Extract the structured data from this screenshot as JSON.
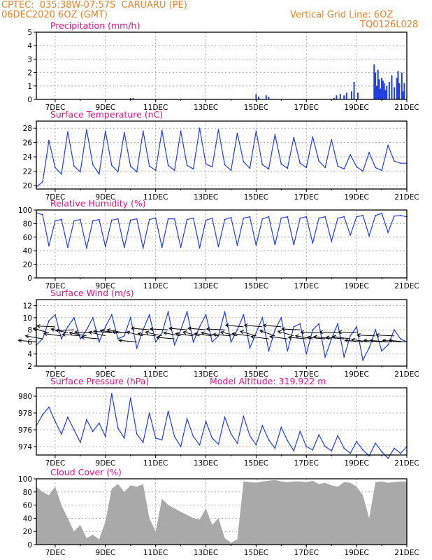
{
  "header": {
    "station": "CPTEC:  035:38W-07:57S  CARUARU (PE)",
    "run": "06DEC2020 6OZ (GMT)",
    "grid_note": "Vertical Grid Line: 6OZ",
    "code": "TQ0126L028"
  },
  "colors": {
    "header": "#e8842a",
    "title": "#e0158a",
    "line": "#1f3fe0",
    "bar": "#1f3fe0",
    "cloud": "#a9a9a9",
    "arrow": "#000000",
    "grid": "#9a9a9a"
  },
  "chart_data": [
    {
      "type": "bar",
      "title": "Precipitation (mm/h)",
      "x_tick_labels": [
        "7DEC",
        "9DEC",
        "11DEC",
        "13DEC",
        "15DEC",
        "17DEC",
        "19DEC",
        "21DEC"
      ],
      "ylim": [
        0,
        5
      ],
      "y_ticks": [
        0,
        1,
        2,
        3,
        4,
        5
      ],
      "grid": true,
      "x_start_day": 6.25,
      "x_end_day": 21,
      "series": [
        {
          "x": [
            10.0,
            10.1,
            15.0,
            15.1,
            15.4,
            15.5,
            18.1,
            18.2,
            18.35,
            18.5,
            18.6,
            18.8,
            18.9,
            19.05,
            19.7,
            19.75,
            19.8,
            19.85,
            19.9,
            19.95,
            20.0,
            20.05,
            20.1,
            20.15,
            20.2,
            20.3,
            20.4,
            20.5,
            20.6,
            20.65,
            20.7,
            20.8,
            20.85,
            20.9
          ],
          "values": [
            0.1,
            0.1,
            0.4,
            0.2,
            0.3,
            0.2,
            0.1,
            0.3,
            0.4,
            0.3,
            0.5,
            0.6,
            1.3,
            0.5,
            2.6,
            2.0,
            1.0,
            2.2,
            1.5,
            0.8,
            1.6,
            1.4,
            1.2,
            0.7,
            1.0,
            1.3,
            1.8,
            0.9,
            1.6,
            2.1,
            1.2,
            2.0,
            0.6,
            1.2
          ]
        }
      ]
    },
    {
      "type": "line",
      "title": "Surface Temperature (nC)",
      "x_tick_labels": [
        "7DEC",
        "9DEC",
        "11DEC",
        "13DEC",
        "15DEC",
        "17DEC",
        "19DEC",
        "21DEC"
      ],
      "ylim": [
        19.5,
        29
      ],
      "y_ticks": [
        20,
        22,
        24,
        26,
        28
      ],
      "grid": true,
      "x_start_day": 6.25,
      "x_end_day": 21,
      "series": [
        {
          "x": [
            6.25,
            6.5,
            6.75,
            7.0,
            7.25,
            7.5,
            7.75,
            8.0,
            8.25,
            8.5,
            8.75,
            9.0,
            9.25,
            9.5,
            9.75,
            10.0,
            10.25,
            10.5,
            10.75,
            11.0,
            11.25,
            11.5,
            11.75,
            12.0,
            12.25,
            12.5,
            12.75,
            13.0,
            13.25,
            13.5,
            13.75,
            14.0,
            14.25,
            14.5,
            14.75,
            15.0,
            15.25,
            15.5,
            15.75,
            16.0,
            16.25,
            16.5,
            16.75,
            17.0,
            17.25,
            17.5,
            17.75,
            18.0,
            18.25,
            18.5,
            18.75,
            19.0,
            19.25,
            19.5,
            19.75,
            20.0,
            20.25,
            20.5,
            20.75,
            21.0
          ],
          "values": [
            19.8,
            20.5,
            26.3,
            22.5,
            21.6,
            27.5,
            22.7,
            21.9,
            27.8,
            22.9,
            21.6,
            27.6,
            22.8,
            21.9,
            27.4,
            22.7,
            21.9,
            27.6,
            22.7,
            22.1,
            27.7,
            22.8,
            22.1,
            27.6,
            22.8,
            22.3,
            28.0,
            23.0,
            22.6,
            27.8,
            22.9,
            22.1,
            27.3,
            23.3,
            22.4,
            27.6,
            22.9,
            22.3,
            27.1,
            23.0,
            22.4,
            26.7,
            23.1,
            22.5,
            26.8,
            23.4,
            22.5,
            26.4,
            22.7,
            22.3,
            24.3,
            22.6,
            22.0,
            24.6,
            22.5,
            22.1,
            25.6,
            23.4,
            23.1,
            23.1
          ]
        }
      ]
    },
    {
      "type": "line",
      "title": "Relative Humidity (%)",
      "x_tick_labels": [
        "7DEC",
        "9DEC",
        "11DEC",
        "13DEC",
        "15DEC",
        "17DEC",
        "19DEC",
        "21DEC"
      ],
      "ylim": [
        0,
        100
      ],
      "y_ticks": [
        0,
        20,
        40,
        60,
        80,
        100
      ],
      "grid": true,
      "x_start_day": 6.25,
      "x_end_day": 21,
      "series": [
        {
          "x": [
            6.25,
            6.5,
            6.75,
            7.0,
            7.25,
            7.5,
            7.75,
            8.0,
            8.25,
            8.5,
            8.75,
            9.0,
            9.25,
            9.5,
            9.75,
            10.0,
            10.25,
            10.5,
            10.75,
            11.0,
            11.25,
            11.5,
            11.75,
            12.0,
            12.25,
            12.5,
            12.75,
            13.0,
            13.25,
            13.5,
            13.75,
            14.0,
            14.25,
            14.5,
            14.75,
            15.0,
            15.25,
            15.5,
            15.75,
            16.0,
            16.25,
            16.5,
            16.75,
            17.0,
            17.25,
            17.5,
            17.75,
            18.0,
            18.25,
            18.5,
            18.75,
            19.0,
            19.25,
            19.5,
            19.75,
            20.0,
            20.25,
            20.5,
            20.75,
            21.0
          ],
          "values": [
            96,
            93,
            47,
            84,
            86,
            45,
            84,
            86,
            44,
            84,
            86,
            46,
            85,
            87,
            45,
            85,
            87,
            44,
            86,
            88,
            45,
            87,
            87,
            45,
            86,
            88,
            44,
            85,
            88,
            46,
            86,
            89,
            48,
            88,
            90,
            48,
            87,
            90,
            49,
            88,
            90,
            49,
            88,
            90,
            51,
            88,
            90,
            54,
            88,
            90,
            63,
            90,
            92,
            62,
            92,
            95,
            67,
            91,
            92,
            90
          ]
        }
      ]
    },
    {
      "type": "line",
      "title": "Surface Wind (m/s)",
      "x_tick_labels": [
        "7DEC",
        "9DEC",
        "11DEC",
        "13DEC",
        "15DEC",
        "17DEC",
        "19DEC",
        "21DEC"
      ],
      "ylim": [
        2,
        13
      ],
      "y_ticks": [
        2,
        4,
        6,
        8,
        10,
        12
      ],
      "grid": true,
      "x_start_day": 6.25,
      "x_end_day": 21,
      "series": [
        {
          "x": [
            6.25,
            6.5,
            6.75,
            7.0,
            7.25,
            7.5,
            7.75,
            8.0,
            8.25,
            8.5,
            8.75,
            9.0,
            9.25,
            9.5,
            9.75,
            10.0,
            10.25,
            10.5,
            10.75,
            11.0,
            11.25,
            11.5,
            11.75,
            12.0,
            12.25,
            12.5,
            12.75,
            13.0,
            13.25,
            13.5,
            13.75,
            14.0,
            14.25,
            14.5,
            14.75,
            15.0,
            15.25,
            15.5,
            15.75,
            16.0,
            16.25,
            16.5,
            16.75,
            17.0,
            17.25,
            17.5,
            17.75,
            18.0,
            18.25,
            18.5,
            18.75,
            19.0,
            19.25,
            19.5,
            19.75,
            20.0,
            20.25,
            20.5,
            20.75,
            21.0
          ],
          "values": [
            5.5,
            6.5,
            9.5,
            10.5,
            6.5,
            8.5,
            10.0,
            6.5,
            8.0,
            10.0,
            6.0,
            8.5,
            10.5,
            6.5,
            7.0,
            10.0,
            5.0,
            8.0,
            10.5,
            6.0,
            7.5,
            11.0,
            5.5,
            8.0,
            11.0,
            6.0,
            8.5,
            10.5,
            6.0,
            7.0,
            11.0,
            6.0,
            8.0,
            10.5,
            5.0,
            7.5,
            10.0,
            4.5,
            8.0,
            10.0,
            4.5,
            8.5,
            9.0,
            4.0,
            8.0,
            9.0,
            3.5,
            6.5,
            9.0,
            3.5,
            7.0,
            8.5,
            3.0,
            5.0,
            8.0,
            4.5,
            5.5,
            8.0,
            6.5,
            6.0
          ]
        }
      ],
      "wind_vectors": {
        "x": [
          6.25,
          6.5,
          6.75,
          7.0,
          7.25,
          7.5,
          7.75,
          8.0,
          8.25,
          8.5,
          8.75,
          9.0,
          9.25,
          9.5,
          9.75,
          10.0,
          10.25,
          10.5,
          10.75,
          11.0,
          11.25,
          11.5,
          11.75,
          12.0,
          12.25,
          12.5,
          12.75,
          13.0,
          13.25,
          13.5,
          13.75,
          14.0,
          14.25,
          14.5,
          14.75,
          15.0,
          15.25,
          15.5,
          15.75,
          16.0,
          16.25,
          16.5,
          16.75,
          17.0,
          17.25,
          17.5,
          17.75,
          18.0,
          18.25,
          18.5,
          18.75,
          19.0,
          19.25,
          19.5,
          19.75,
          20.0,
          20.25,
          20.5,
          20.75,
          21.0
        ],
        "speed": [
          6.0,
          6.5,
          7.5,
          8.5,
          7.0,
          7.5,
          8.0,
          7.0,
          7.0,
          7.5,
          6.5,
          7.0,
          7.5,
          7.5,
          7.5,
          7.5,
          6.0,
          7.0,
          8.0,
          7.0,
          7.0,
          8.0,
          6.5,
          7.0,
          8.0,
          7.0,
          7.0,
          8.0,
          7.0,
          7.0,
          8.0,
          7.0,
          7.0,
          8.5,
          7.0,
          7.0,
          8.5,
          6.5,
          7.0,
          8.5,
          6.5,
          7.0,
          8.0,
          6.5,
          6.5,
          7.5,
          6.5,
          6.5,
          7.5,
          6.5,
          6.5,
          7.5,
          6.0,
          6.0,
          7.0,
          6.0,
          6.0,
          7.0,
          6.0,
          6.0
        ],
        "direction_deg": [
          100,
          110,
          120,
          95,
          105,
          115,
          85,
          100,
          110,
          95,
          100,
          115,
          100,
          105,
          110,
          95,
          100,
          115,
          100,
          105,
          115,
          95,
          100,
          110,
          100,
          105,
          115,
          100,
          105,
          110,
          95,
          100,
          115,
          100,
          105,
          120,
          100,
          105,
          125,
          100,
          105,
          120,
          95,
          100,
          110,
          95,
          100,
          105,
          95,
          100,
          105,
          95,
          100,
          105,
          95,
          100,
          100,
          95,
          100,
          100
        ]
      }
    },
    {
      "type": "line",
      "title": "Surface Pressure (hPa)",
      "annotation": "Model Altitude: 319.922 m",
      "x_tick_labels": [
        "7DEC",
        "9DEC",
        "11DEC",
        "13DEC",
        "15DEC",
        "17DEC",
        "19DEC",
        "21DEC"
      ],
      "ylim": [
        973,
        981
      ],
      "y_ticks": [
        974,
        976,
        978,
        980
      ],
      "grid": true,
      "x_start_day": 6.25,
      "x_end_day": 21,
      "series": [
        {
          "x": [
            6.25,
            6.5,
            6.75,
            7.0,
            7.25,
            7.5,
            7.75,
            8.0,
            8.25,
            8.5,
            8.75,
            9.0,
            9.25,
            9.5,
            9.75,
            10.0,
            10.25,
            10.5,
            10.75,
            11.0,
            11.25,
            11.5,
            11.75,
            12.0,
            12.25,
            12.5,
            12.75,
            13.0,
            13.25,
            13.5,
            13.75,
            14.0,
            14.25,
            14.5,
            14.75,
            15.0,
            15.25,
            15.5,
            15.75,
            16.0,
            16.25,
            16.5,
            16.75,
            17.0,
            17.25,
            17.5,
            17.75,
            18.0,
            18.25,
            18.5,
            18.75,
            19.0,
            19.25,
            19.5,
            19.75,
            20.0,
            20.25,
            20.5,
            20.75,
            21.0
          ],
          "values": [
            976.5,
            977.8,
            978.7,
            977.0,
            975.5,
            977.5,
            976.0,
            974.5,
            977.2,
            975.8,
            976.8,
            975.2,
            980.3,
            976.2,
            975.0,
            979.8,
            975.5,
            974.5,
            978.0,
            975.0,
            974.8,
            978.2,
            975.2,
            974.0,
            977.3,
            975.2,
            974.2,
            977.0,
            975.0,
            974.3,
            977.5,
            975.5,
            974.4,
            977.6,
            975.3,
            974.2,
            976.5,
            974.8,
            973.8,
            976.3,
            974.7,
            973.5,
            975.8,
            974.0,
            973.6,
            975.4,
            974.0,
            973.5,
            975.3,
            973.8,
            973.2,
            974.6,
            973.6,
            972.9,
            974.4,
            973.4,
            972.6,
            973.8,
            973.2,
            974.0
          ]
        }
      ]
    },
    {
      "type": "area",
      "title": "Cloud Cover (%)",
      "x_tick_labels": [
        "7DEC",
        "9DEC",
        "11DEC",
        "13DEC",
        "15DEC",
        "17DEC",
        "19DEC",
        "21DEC"
      ],
      "ylim": [
        0,
        100
      ],
      "y_ticks": [
        0,
        20,
        40,
        60,
        80,
        100
      ],
      "grid": true,
      "x_start_day": 6.25,
      "x_end_day": 21,
      "series": [
        {
          "x": [
            6.25,
            6.5,
            6.75,
            7.0,
            7.25,
            7.5,
            7.75,
            8.0,
            8.25,
            8.5,
            8.75,
            9.0,
            9.25,
            9.5,
            9.75,
            10.0,
            10.25,
            10.5,
            10.75,
            11.0,
            11.25,
            11.5,
            11.75,
            12.0,
            12.25,
            12.5,
            12.75,
            13.0,
            13.25,
            13.5,
            13.75,
            14.0,
            14.25,
            14.5,
            14.75,
            15.0,
            15.25,
            15.5,
            15.75,
            16.0,
            16.25,
            16.5,
            16.75,
            17.0,
            17.25,
            17.5,
            17.75,
            18.0,
            18.25,
            18.5,
            18.75,
            19.0,
            19.25,
            19.5,
            19.75,
            20.0,
            20.25,
            20.5,
            20.75,
            21.0
          ],
          "values": [
            88,
            80,
            75,
            88,
            60,
            40,
            20,
            30,
            10,
            15,
            8,
            35,
            85,
            92,
            80,
            90,
            88,
            92,
            40,
            20,
            70,
            60,
            55,
            50,
            45,
            40,
            38,
            55,
            30,
            40,
            10,
            3,
            8,
            96,
            95,
            94,
            96,
            97,
            98,
            96,
            95,
            96,
            96,
            95,
            97,
            92,
            94,
            90,
            88,
            95,
            94,
            88,
            75,
            40,
            95,
            96,
            94,
            95,
            96,
            96
          ]
        }
      ]
    }
  ]
}
